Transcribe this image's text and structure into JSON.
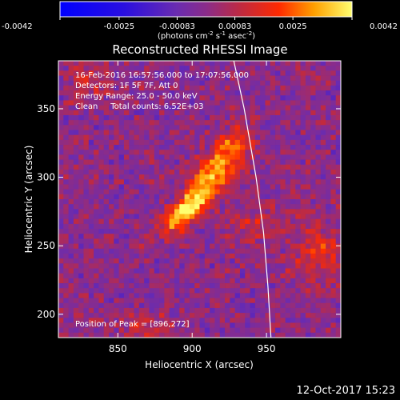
{
  "chart_data": {
    "type": "heatmap",
    "title": "Reconstructed RHESSI Image",
    "xlabel": "Heliocentric X (arcsec)",
    "ylabel": "Heliocentric Y (arcsec)",
    "xlim": [
      810,
      1000
    ],
    "ylim": [
      183,
      385
    ],
    "xticks": [
      850,
      900,
      950
    ],
    "yticks": [
      200,
      250,
      300,
      350
    ],
    "colorbar": {
      "ticks": [
        "-0.0042",
        "-0.0025",
        "-0.00083",
        "0.00083",
        "0.0025",
        "0.0042"
      ],
      "unit_main": "(photons cm",
      "unit_sup1": "-2",
      "unit_mid1": " s",
      "unit_sup2": "-1",
      "unit_mid2": " asec",
      "unit_sup3": "-2",
      "unit_end": ")",
      "range": [
        -0.0042,
        0.0042
      ]
    },
    "info_lines": [
      "16-Feb-2016 16:57:56.000 to 17:07:56.000",
      "Detectors: 1F 5F 7F, Att 0",
      "Energy Range: 25.0 - 50.0 keV",
      "Clean     Total counts: 6.52E+03"
    ],
    "peak_label": "Position of Peak = [896,272]",
    "peak": [
      896,
      272
    ],
    "limb_curve": [
      [
        928,
        385
      ],
      [
        935,
        350
      ],
      [
        943,
        300
      ],
      [
        948,
        260
      ],
      [
        951,
        220
      ],
      [
        953,
        183
      ]
    ],
    "sources": [
      {
        "x": 897,
        "y": 276,
        "sx": 14,
        "sy": 6,
        "angle": 47,
        "amp": 0.0042
      },
      {
        "x": 915,
        "y": 303,
        "sx": 16,
        "sy": 8,
        "angle": 50,
        "amp": 0.0031
      },
      {
        "x": 928,
        "y": 325,
        "sx": 9,
        "sy": 7,
        "angle": 45,
        "amp": 0.0018
      },
      {
        "x": 985,
        "y": 245,
        "sx": 13,
        "sy": 16,
        "angle": 0,
        "amp": 0.0016
      },
      {
        "x": 940,
        "y": 265,
        "sx": 12,
        "sy": 9,
        "angle": 30,
        "amp": 0.0012
      },
      {
        "x": 870,
        "y": 190,
        "sx": 12,
        "sy": 7,
        "angle": 0,
        "amp": 0.0014
      },
      {
        "x": 830,
        "y": 370,
        "sx": 9,
        "sy": 10,
        "angle": 0,
        "amp": 0.0011
      }
    ]
  },
  "timestamp": "12-Oct-2017 15:23"
}
